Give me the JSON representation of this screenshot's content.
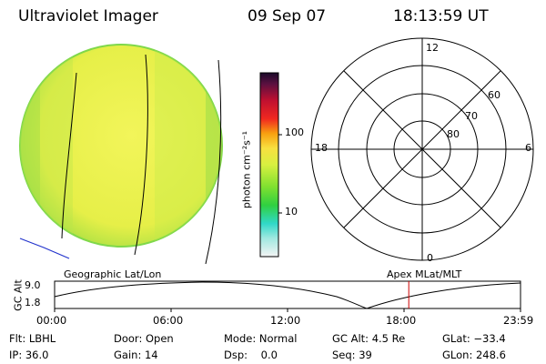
{
  "header": {
    "title": "Ultraviolet Imager",
    "date": "09 Sep 07",
    "time": "18:13:59 UT"
  },
  "colorbar": {
    "label": "photon cm⁻²s⁻¹",
    "ticks": [
      {
        "label": "100",
        "value": 100
      },
      {
        "label": "10",
        "value": 10
      }
    ]
  },
  "polar": {
    "hour_labels": [
      {
        "label": "12",
        "hour": 12
      },
      {
        "label": "18",
        "hour": 18
      },
      {
        "label": "6",
        "hour": 6
      },
      {
        "label": "0",
        "hour": 0
      }
    ],
    "lat_labels": [
      {
        "label": "60",
        "lat": 60
      },
      {
        "label": "70",
        "lat": 70
      },
      {
        "label": "80",
        "lat": 80
      }
    ]
  },
  "orbit": {
    "left_title": "Geographic Lat/Lon",
    "right_title": "Apex MLat/MLT",
    "ylabel": "GC Alt",
    "yticks": [
      "9.0",
      "1.8"
    ],
    "xticks": [
      "00:00",
      "06:00",
      "12:00",
      "18:00",
      "23:59"
    ],
    "marker_time": "18:14"
  },
  "footer": {
    "row1": [
      {
        "key": "Flt:",
        "value": "LBHL"
      },
      {
        "key": "Door:",
        "value": "Open"
      },
      {
        "key": "Mode:",
        "value": "Normal"
      },
      {
        "key": "GC Alt:",
        "value": "4.5 Re"
      },
      {
        "key": "GLat:",
        "value": "−33.4"
      }
    ],
    "row2": [
      {
        "key": "IP:",
        "value": "36.0"
      },
      {
        "key": "Gain:",
        "value": "14"
      },
      {
        "key": "Dsp:",
        "value": "0.0"
      },
      {
        "key": "Seq:",
        "value": "39"
      },
      {
        "key": "GLon:",
        "value": "248.6"
      }
    ]
  },
  "colors": {
    "disk": "#e8f24a",
    "disk_edge": "#9be24a",
    "coast_line": "#2233cc",
    "marker": "#cc0000"
  }
}
